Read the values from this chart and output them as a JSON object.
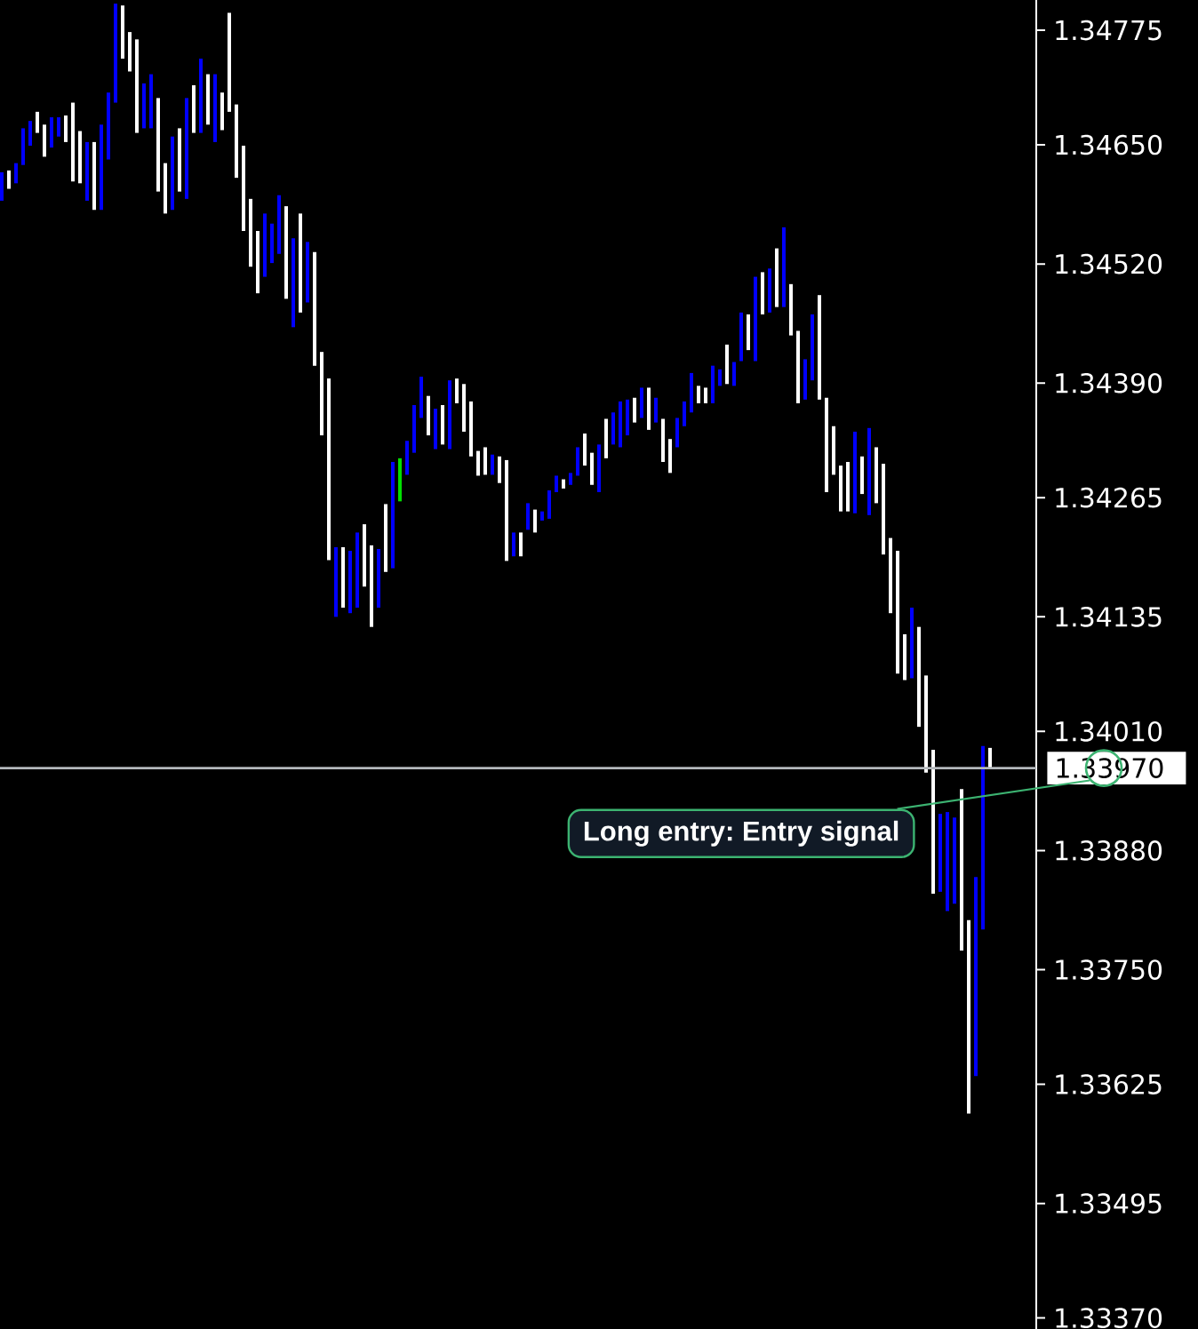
{
  "chart_data": {
    "type": "candlestick",
    "categories": [
      null,
      null,
      null,
      null,
      null,
      null,
      null,
      null,
      null,
      null,
      null,
      null,
      null,
      null,
      null,
      null,
      null,
      null,
      null,
      null,
      null,
      null,
      null,
      null,
      null,
      null,
      null,
      null,
      null,
      null,
      null,
      null,
      null,
      null,
      null,
      null,
      null,
      null,
      null,
      null,
      null,
      null,
      null,
      null,
      null,
      null,
      null,
      null,
      null,
      null,
      null,
      null,
      null,
      null,
      null,
      null,
      null,
      null,
      null,
      null,
      null,
      null,
      null,
      null,
      null,
      null,
      null,
      null,
      null,
      null,
      null,
      null,
      null,
      null,
      null,
      null,
      null,
      null,
      null,
      null,
      null,
      null,
      null,
      null,
      null,
      null,
      null,
      null,
      null,
      null,
      null,
      null,
      null,
      null,
      null,
      null,
      null,
      null,
      null,
      null,
      null,
      null,
      null,
      null,
      null,
      null,
      null,
      null,
      null,
      null,
      null,
      null,
      null,
      null,
      null,
      null,
      null,
      null,
      null,
      null,
      null,
      null,
      null,
      null,
      null,
      null,
      null,
      null,
      null,
      null,
      null,
      null,
      null,
      null,
      null,
      null,
      null,
      null,
      null,
      null
    ],
    "ohlc": [
      [
        1.34589,
        1.3462,
        1.34589,
        1.3462
      ],
      [
        1.34622,
        1.34622,
        1.34602,
        1.34602
      ],
      [
        1.34608,
        1.3463,
        1.34608,
        1.3463
      ],
      [
        1.34628,
        1.34668,
        1.34628,
        1.34668
      ],
      [
        1.34649,
        1.34676,
        1.34649,
        1.34676
      ],
      [
        1.34686,
        1.34686,
        1.34663,
        1.34663
      ],
      [
        1.34672,
        1.34672,
        1.34637,
        1.34637
      ],
      [
        1.34647,
        1.3468,
        1.34647,
        1.3468
      ],
      [
        1.34659,
        1.3468,
        1.34659,
        1.3468
      ],
      [
        1.34682,
        1.34682,
        1.34653,
        1.34653
      ],
      [
        1.34696,
        1.34696,
        1.3461,
        1.3461
      ],
      [
        1.34665,
        1.34665,
        1.34608,
        1.34608
      ],
      [
        1.34589,
        1.34653,
        1.34589,
        1.34653
      ],
      [
        1.34653,
        1.34653,
        1.34579,
        1.34579
      ],
      [
        1.34579,
        1.34672,
        1.34579,
        1.34672
      ],
      [
        1.34634,
        1.34707,
        1.34634,
        1.34707
      ],
      [
        1.34696,
        1.34804,
        1.34696,
        1.34804
      ],
      [
        1.34802,
        1.34802,
        1.34744,
        1.34744
      ],
      [
        1.34773,
        1.34773,
        1.3473,
        1.3473
      ],
      [
        1.34765,
        1.34765,
        1.34663,
        1.34663
      ],
      [
        1.34668,
        1.34717,
        1.34668,
        1.34717
      ],
      [
        1.34668,
        1.34727,
        1.34668,
        1.34727
      ],
      [
        1.34701,
        1.34701,
        1.34599,
        1.34599
      ],
      [
        1.3463,
        1.3463,
        1.34575,
        1.34575
      ],
      [
        1.34579,
        1.34659,
        1.34579,
        1.34659
      ],
      [
        1.34668,
        1.34668,
        1.34599,
        1.34599
      ],
      [
        1.34591,
        1.34701,
        1.34591,
        1.34701
      ],
      [
        1.34715,
        1.34715,
        1.34663,
        1.34663
      ],
      [
        1.34663,
        1.34744,
        1.34663,
        1.34744
      ],
      [
        1.34727,
        1.34727,
        1.34672,
        1.34672
      ],
      [
        1.34653,
        1.34727,
        1.34653,
        1.34727
      ],
      [
        1.34707,
        1.34707,
        1.34666,
        1.34666
      ],
      [
        1.34794,
        1.34794,
        1.34686,
        1.34686
      ],
      [
        1.34694,
        1.34694,
        1.34614,
        1.34614
      ],
      [
        1.34649,
        1.34649,
        1.34556,
        1.34556
      ],
      [
        1.34591,
        1.34591,
        1.34517,
        1.34517
      ],
      [
        1.34556,
        1.34556,
        1.34488,
        1.34488
      ],
      [
        1.34506,
        1.34575,
        1.34506,
        1.34575
      ],
      [
        1.34521,
        1.34564,
        1.34521,
        1.34564
      ],
      [
        1.34531,
        1.34595,
        1.34531,
        1.34595
      ],
      [
        1.34583,
        1.34583,
        1.34482,
        1.34482
      ],
      [
        1.34451,
        1.34548,
        1.34451,
        1.34548
      ],
      [
        1.34575,
        1.34575,
        1.34467,
        1.34467
      ],
      [
        1.34478,
        1.34544,
        1.34478,
        1.34544
      ],
      [
        1.34533,
        1.34533,
        1.34409,
        1.34409
      ],
      [
        1.34424,
        1.34424,
        1.34333,
        1.34333
      ],
      [
        1.34395,
        1.34395,
        1.34197,
        1.34197
      ],
      [
        1.34135,
        1.34211,
        1.34135,
        1.34211
      ],
      [
        1.34211,
        1.34211,
        1.34145,
        1.34145
      ],
      [
        1.34139,
        1.34207,
        1.34139,
        1.34207
      ],
      [
        1.34145,
        1.34227,
        1.34145,
        1.34227
      ],
      [
        1.34236,
        1.34236,
        1.34168,
        1.34168
      ],
      [
        1.34213,
        1.34213,
        1.34124,
        1.34124
      ],
      [
        1.34145,
        1.34209,
        1.34145,
        1.34209
      ],
      [
        1.34258,
        1.34258,
        1.34184,
        1.34184
      ],
      [
        1.34188,
        1.34304,
        1.34188,
        1.34304
      ],
      [
        1.34261,
        1.34308,
        1.34261,
        1.34308
      ],
      [
        1.3429,
        1.34327,
        1.3429,
        1.34327
      ],
      [
        1.34314,
        1.34366,
        1.34314,
        1.34366
      ],
      [
        1.34352,
        1.34397,
        1.34352,
        1.34397
      ],
      [
        1.34376,
        1.34376,
        1.34333,
        1.34333
      ],
      [
        1.34318,
        1.34362,
        1.34318,
        1.34362
      ],
      [
        1.34366,
        1.34366,
        1.34323,
        1.34323
      ],
      [
        1.34318,
        1.34393,
        1.34318,
        1.34393
      ],
      [
        1.34395,
        1.34395,
        1.34368,
        1.34368
      ],
      [
        1.34389,
        1.34389,
        1.34337,
        1.34337
      ],
      [
        1.3437,
        1.3437,
        1.3431,
        1.3431
      ],
      [
        1.34316,
        1.34316,
        1.34289,
        1.34289
      ],
      [
        1.3432,
        1.3432,
        1.3429,
        1.3429
      ],
      [
        1.3429,
        1.34312,
        1.3429,
        1.34312
      ],
      [
        1.3431,
        1.3431,
        1.34281,
        1.34281
      ],
      [
        1.34306,
        1.34306,
        1.34196,
        1.34196
      ],
      [
        1.34201,
        1.34227,
        1.34201,
        1.34227
      ],
      [
        1.34227,
        1.34227,
        1.34201,
        1.34201
      ],
      [
        1.3423,
        1.34259,
        1.3423,
        1.34259
      ],
      [
        1.34252,
        1.34252,
        1.34227,
        1.34227
      ],
      [
        1.3424,
        1.3425,
        1.3424,
        1.3425
      ],
      [
        1.34242,
        1.34273,
        1.34242,
        1.34273
      ],
      [
        1.34271,
        1.34289,
        1.34271,
        1.34289
      ],
      [
        1.34285,
        1.34285,
        1.34275,
        1.34275
      ],
      [
        1.34279,
        1.34292,
        1.34279,
        1.34292
      ],
      [
        1.34289,
        1.3432,
        1.34289,
        1.3432
      ],
      [
        1.34335,
        1.34335,
        1.343,
        1.343
      ],
      [
        1.34314,
        1.34314,
        1.34279,
        1.34279
      ],
      [
        1.34271,
        1.34323,
        1.34271,
        1.34323
      ],
      [
        1.34351,
        1.34351,
        1.34308,
        1.34308
      ],
      [
        1.34323,
        1.34358,
        1.34323,
        1.34358
      ],
      [
        1.3432,
        1.3437,
        1.3432,
        1.3437
      ],
      [
        1.34333,
        1.34372,
        1.34333,
        1.34372
      ],
      [
        1.34374,
        1.34374,
        1.34347,
        1.34347
      ],
      [
        1.34352,
        1.34385,
        1.34352,
        1.34385
      ],
      [
        1.34385,
        1.34385,
        1.34339,
        1.34339
      ],
      [
        1.34347,
        1.34374,
        1.34347,
        1.34374
      ],
      [
        1.34351,
        1.34351,
        1.34304,
        1.34304
      ],
      [
        1.34329,
        1.34329,
        1.34292,
        1.34292
      ],
      [
        1.3432,
        1.34352,
        1.3432,
        1.34352
      ],
      [
        1.34343,
        1.3437,
        1.34343,
        1.3437
      ],
      [
        1.34358,
        1.34401,
        1.34358,
        1.34401
      ],
      [
        1.34387,
        1.34387,
        1.34368,
        1.34368
      ],
      [
        1.34385,
        1.34385,
        1.34368,
        1.34368
      ],
      [
        1.34368,
        1.34409,
        1.34368,
        1.34409
      ],
      [
        1.34387,
        1.34405,
        1.34387,
        1.34405
      ],
      [
        1.34432,
        1.34432,
        1.34389,
        1.34389
      ],
      [
        1.34387,
        1.34413,
        1.34387,
        1.34413
      ],
      [
        1.34414,
        1.34467,
        1.34414,
        1.34467
      ],
      [
        1.34465,
        1.34465,
        1.34426,
        1.34426
      ],
      [
        1.34414,
        1.34506,
        1.34414,
        1.34506
      ],
      [
        1.34511,
        1.34511,
        1.34465,
        1.34465
      ],
      [
        1.34467,
        1.34515,
        1.34467,
        1.34515
      ],
      [
        1.34537,
        1.34537,
        1.34473,
        1.34473
      ],
      [
        1.34473,
        1.3456,
        1.34473,
        1.3456
      ],
      [
        1.34498,
        1.34498,
        1.34442,
        1.34442
      ],
      [
        1.34447,
        1.34447,
        1.34368,
        1.34368
      ],
      [
        1.34372,
        1.34416,
        1.34372,
        1.34416
      ],
      [
        1.34393,
        1.34465,
        1.34393,
        1.34465
      ],
      [
        1.34486,
        1.34486,
        1.34372,
        1.34372
      ],
      [
        1.34374,
        1.34374,
        1.34271,
        1.34271
      ],
      [
        1.34343,
        1.34343,
        1.3429,
        1.3429
      ],
      [
        1.343,
        1.343,
        1.3425,
        1.3425
      ],
      [
        1.34304,
        1.34304,
        1.3425,
        1.3425
      ],
      [
        1.34248,
        1.34337,
        1.34248,
        1.34337
      ],
      [
        1.3431,
        1.3431,
        1.34269,
        1.34269
      ],
      [
        1.34246,
        1.34341,
        1.34246,
        1.34341
      ],
      [
        1.3432,
        1.3432,
        1.34259,
        1.34259
      ],
      [
        1.34302,
        1.34302,
        1.34203,
        1.34203
      ],
      [
        1.34221,
        1.34221,
        1.34139,
        1.34139
      ],
      [
        1.34207,
        1.34207,
        1.34073,
        1.34073
      ],
      [
        1.34116,
        1.34116,
        1.34066,
        1.34066
      ],
      [
        1.34068,
        1.34145,
        1.34068,
        1.34145
      ],
      [
        1.34124,
        1.34124,
        1.34015,
        1.34015
      ],
      [
        1.34071,
        1.34071,
        1.33965,
        1.33965
      ],
      [
        1.3399,
        1.3399,
        1.33833,
        1.33833
      ],
      [
        1.33835,
        1.3392,
        1.33835,
        1.3392
      ],
      [
        1.33814,
        1.33922,
        1.33814,
        1.33922
      ],
      [
        1.33822,
        1.33916,
        1.33822,
        1.33916
      ],
      [
        1.33947,
        1.33947,
        1.33771,
        1.33771
      ],
      [
        1.33804,
        1.33804,
        1.33593,
        1.33593
      ],
      [
        1.33634,
        1.33851,
        1.33634,
        1.33851
      ],
      [
        1.33794,
        1.33994,
        1.33794,
        1.33994
      ],
      [
        1.33992,
        1.33992,
        1.3397,
        1.3397
      ]
    ],
    "colors": [
      "#0000ff",
      "#ffffff",
      "#0000ff",
      "#0000ff",
      "#0000ff",
      "#ffffff",
      "#ffffff",
      "#0000ff",
      "#0000ff",
      "#ffffff",
      "#ffffff",
      "#ffffff",
      "#0000ff",
      "#ffffff",
      "#0000ff",
      "#0000ff",
      "#0000ff",
      "#ffffff",
      "#ffffff",
      "#ffffff",
      "#0000ff",
      "#0000ff",
      "#ffffff",
      "#ffffff",
      "#0000ff",
      "#ffffff",
      "#0000ff",
      "#ffffff",
      "#0000ff",
      "#ffffff",
      "#0000ff",
      "#ffffff",
      "#ffffff",
      "#ffffff",
      "#ffffff",
      "#ffffff",
      "#ffffff",
      "#0000ff",
      "#0000ff",
      "#0000ff",
      "#ffffff",
      "#0000ff",
      "#ffffff",
      "#0000ff",
      "#ffffff",
      "#ffffff",
      "#ffffff",
      "#0000ff",
      "#ffffff",
      "#0000ff",
      "#0000ff",
      "#ffffff",
      "#ffffff",
      "#0000ff",
      "#ffffff",
      "#0000ff",
      "#00e000",
      "#0000ff",
      "#0000ff",
      "#0000ff",
      "#ffffff",
      "#0000ff",
      "#ffffff",
      "#0000ff",
      "#ffffff",
      "#ffffff",
      "#ffffff",
      "#ffffff",
      "#ffffff",
      "#0000ff",
      "#ffffff",
      "#ffffff",
      "#0000ff",
      "#ffffff",
      "#0000ff",
      "#ffffff",
      "#0000ff",
      "#0000ff",
      "#0000ff",
      "#ffffff",
      "#0000ff",
      "#0000ff",
      "#ffffff",
      "#ffffff",
      "#0000ff",
      "#ffffff",
      "#0000ff",
      "#0000ff",
      "#0000ff",
      "#ffffff",
      "#0000ff",
      "#ffffff",
      "#0000ff",
      "#ffffff",
      "#ffffff",
      "#0000ff",
      "#0000ff",
      "#0000ff",
      "#ffffff",
      "#ffffff",
      "#0000ff",
      "#0000ff",
      "#ffffff",
      "#0000ff",
      "#0000ff",
      "#ffffff",
      "#0000ff",
      "#ffffff",
      "#0000ff",
      "#ffffff",
      "#0000ff",
      "#ffffff",
      "#ffffff",
      "#0000ff",
      "#0000ff",
      "#ffffff",
      "#ffffff",
      "#ffffff",
      "#ffffff",
      "#ffffff",
      "#0000ff",
      "#ffffff",
      "#0000ff",
      "#ffffff",
      "#ffffff",
      "#ffffff",
      "#ffffff",
      "#ffffff",
      "#0000ff",
      "#ffffff",
      "#ffffff",
      "#ffffff",
      "#0000ff",
      "#0000ff",
      "#0000ff",
      "#ffffff",
      "#ffffff",
      "#0000ff",
      "#0000ff",
      "#ffffff"
    ],
    "ylim": [
      1.33358,
      1.34808
    ],
    "yticks": [
      1.34775,
      {
        "value": 1.3465,
        "label": "1.34650"
      },
      {
        "value": 1.3452,
        "label": "1.34520"
      },
      {
        "value": 1.3439,
        "label": "1.34390"
      },
      1.34265,
      1.34135,
      {
        "value": 1.3401,
        "label": "1.34010"
      },
      {
        "value": 1.3388,
        "label": "1.33880"
      },
      {
        "value": 1.3375,
        "label": "1.33750"
      },
      1.33625,
      1.33495,
      {
        "value": 1.3337,
        "label": "1.33370"
      }
    ],
    "ref_lines": [
      {
        "axis": "y",
        "value": 1.3397,
        "label": "1.33970",
        "color": "#b4b8bc"
      }
    ],
    "annotations": [
      {
        "text": "Long entry: Entry signal",
        "y": 1.3397
      }
    ],
    "tick_labels": "y"
  }
}
